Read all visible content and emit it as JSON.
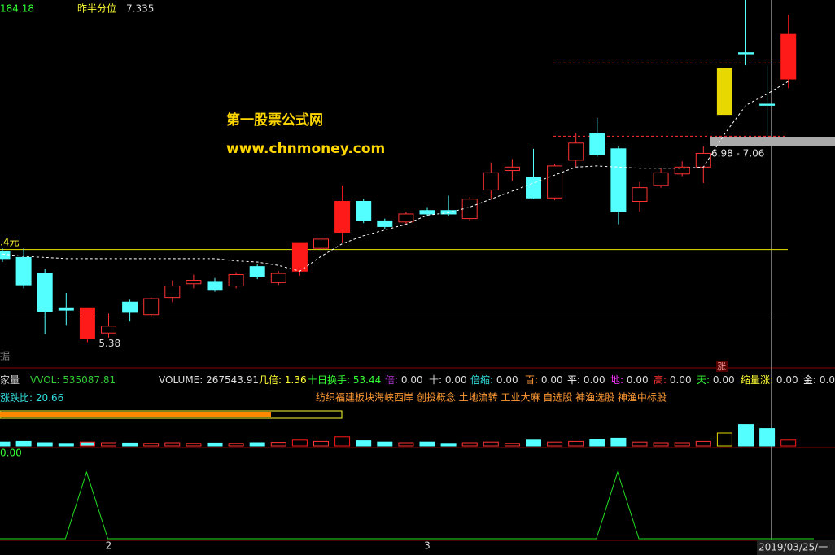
{
  "texts": {
    "top_left": "184.18",
    "ref_label": "昨半分位",
    "ref_value": "7.335",
    "site_name": "第一股票公式网",
    "site_url": "www.chnmoney.com",
    "level_note": ".4元",
    "range_note": "6.98 - 7.06",
    "side_note": "据",
    "rise_flag": "涨",
    "panel2_name": "涨跌比:",
    "panel2_value": "20.66",
    "concepts": "纺织福建板块海峡西岸 创投概念 土地流转 工业大麻 自选股 神渔选股 神渔中标股",
    "panel3_value": "0.00",
    "date": "2019/03/25/一"
  },
  "readouts": [
    {
      "label": "家量",
      "value": "",
      "color": "#cccccc"
    },
    {
      "label": "VVOL:",
      "value": "535087.81",
      "color": "#33cc33"
    },
    {
      "label": "VOLUME:",
      "value": "267543.91",
      "color": "#dddddd"
    },
    {
      "label": "几倍:",
      "value": "1.36",
      "color": "#ffff33"
    },
    {
      "label": "十日换手:",
      "value": "53.44",
      "color": "#33ff33"
    },
    {
      "label": "倍:",
      "value": "0.00",
      "color": "#aa33cc"
    },
    {
      "label": "十:",
      "value": "0.00",
      "color": "#dddddd"
    },
    {
      "label": "倍缩:",
      "value": "0.00",
      "color": "#33dddd"
    },
    {
      "label": "百:",
      "value": "0.00",
      "color": "#ff9933"
    },
    {
      "label": "平:",
      "value": "0.00",
      "color": "#ffffff"
    },
    {
      "label": "地:",
      "value": "0.00",
      "color": "#ff33ff"
    },
    {
      "label": "高:",
      "value": "0.00",
      "color": "#ff3333"
    },
    {
      "label": "天:",
      "value": "0.00",
      "color": "#33ff33"
    },
    {
      "label": "缩量涨:",
      "value": "0.00",
      "color": "#ffff33"
    },
    {
      "label": "金:",
      "value": "0.00",
      "color": "#ffffff"
    }
  ],
  "chart_data": {
    "type": "candlestick",
    "ylim": [
      5.17,
      8.37
    ],
    "categories": [
      null,
      null,
      null,
      null,
      null,
      "2",
      null,
      null,
      null,
      null,
      null,
      null,
      null,
      null,
      null,
      null,
      null,
      null,
      null,
      null,
      "3",
      null,
      null,
      null,
      null,
      null,
      null,
      null,
      null,
      null,
      null,
      null,
      null,
      null,
      null,
      null,
      null,
      null
    ],
    "candles": {
      "open": [
        6.17,
        6.12,
        5.98,
        5.68,
        5.68,
        5.46,
        5.73,
        5.62,
        5.77,
        5.89,
        5.91,
        5.87,
        6.04,
        5.9,
        6.0,
        6.2,
        6.34,
        6.61,
        6.44,
        6.43,
        6.53,
        6.53,
        6.46,
        6.71,
        6.88,
        6.82,
        6.64,
        6.97,
        7.2,
        7.07,
        6.61,
        6.75,
        6.85,
        6.91,
        7.37,
        7.91,
        7.46,
        7.68
      ],
      "high": [
        6.2,
        6.2,
        6.02,
        5.81,
        5.68,
        5.63,
        5.75,
        5.77,
        5.92,
        5.97,
        5.94,
        5.99,
        6.06,
        6.0,
        6.25,
        6.32,
        6.75,
        6.63,
        6.46,
        6.52,
        6.56,
        6.66,
        6.65,
        6.95,
        6.98,
        7.07,
        6.94,
        7.21,
        7.34,
        7.09,
        6.78,
        6.9,
        6.96,
        7.09,
        7.77,
        8.37,
        7.8,
        8.24
      ],
      "low": [
        6.08,
        5.85,
        5.45,
        5.53,
        5.38,
        5.42,
        5.56,
        5.6,
        5.73,
        5.85,
        5.82,
        5.85,
        5.93,
        5.88,
        5.96,
        6.18,
        6.25,
        6.42,
        6.37,
        6.41,
        6.48,
        6.48,
        6.44,
        6.63,
        6.79,
        6.63,
        6.62,
        6.91,
        7.0,
        6.41,
        6.52,
        6.73,
        6.83,
        6.77,
        7.37,
        7.8,
        7.16,
        7.6
      ],
      "close": [
        6.11,
        5.88,
        5.65,
        5.66,
        5.41,
        5.52,
        5.64,
        5.76,
        5.87,
        5.92,
        5.84,
        5.97,
        5.95,
        5.98,
        6.25,
        6.28,
        6.61,
        6.44,
        6.39,
        6.5,
        6.5,
        6.5,
        6.63,
        6.86,
        6.91,
        6.64,
        6.92,
        7.12,
        7.02,
        6.52,
        6.73,
        6.86,
        6.91,
        7.03,
        7.77,
        7.9,
        7.45,
        8.07
      ],
      "color": [
        "#54ffff",
        "#54ffff",
        "#54ffff",
        "#54ffff",
        "#ff1a1a",
        "#ff3232",
        "#54ffff",
        "#ff3232",
        "#ff3232",
        "#ff3232",
        "#54ffff",
        "#ff3232",
        "#54ffff",
        "#ff3232",
        "#ff1a1a",
        "#ff3232",
        "#ff1a1a",
        "#54ffff",
        "#54ffff",
        "#ff3232",
        "#54ffff",
        "#54ffff",
        "#ff3232",
        "#ff3232",
        "#ff3232",
        "#54ffff",
        "#ff3232",
        "#ff3232",
        "#54ffff",
        "#54ffff",
        "#ff3232",
        "#ff3232",
        "#ff3232",
        "#ff3232",
        "#e6d800",
        "#54ffff",
        "#54ffff",
        "#ff1a1a"
      ],
      "hollow": [
        false,
        false,
        false,
        false,
        false,
        true,
        false,
        true,
        true,
        true,
        false,
        true,
        false,
        true,
        false,
        true,
        false,
        false,
        false,
        true,
        false,
        false,
        true,
        true,
        true,
        false,
        true,
        true,
        false,
        false,
        true,
        true,
        true,
        true,
        false,
        false,
        false,
        false
      ]
    },
    "ma": {
      "color": "#ffffff",
      "values": [
        6.15,
        6.13,
        6.12,
        6.11,
        6.11,
        6.11,
        6.11,
        6.11,
        6.11,
        6.11,
        6.11,
        6.09,
        6.08,
        6.05,
        6.0,
        6.13,
        6.24,
        6.31,
        6.36,
        6.41,
        6.49,
        6.51,
        6.56,
        6.63,
        6.7,
        6.77,
        6.84,
        6.91,
        6.92,
        6.91,
        6.9,
        6.9,
        6.9,
        6.91,
        7.2,
        7.45,
        7.55,
        7.66
      ]
    },
    "levels": [
      {
        "value": 6.19,
        "color": "#e6e600",
        "dashed": false
      },
      {
        "value": 5.6,
        "color": "#dddddd",
        "dashed": false
      },
      {
        "value": 7.82,
        "color": "#ff3232",
        "dashed": true
      },
      {
        "value": 7.18,
        "color": "#ff3232",
        "dashed": true
      }
    ],
    "volume": {
      "vlim": [
        0,
        600000
      ],
      "values": [
        60000,
        70000,
        50000,
        40000,
        60000,
        50000,
        45000,
        40000,
        50000,
        40000,
        45000,
        40000,
        50000,
        55000,
        90000,
        70000,
        140000,
        80000,
        60000,
        50000,
        60000,
        40000,
        50000,
        60000,
        40000,
        90000,
        60000,
        70000,
        100000,
        120000,
        60000,
        50000,
        50000,
        70000,
        200000,
        330000,
        267543.91,
        90000
      ]
    },
    "indicator": {
      "ilim": [
        0,
        1.1
      ],
      "color": "#22dd22",
      "values": [
        0,
        0,
        0,
        0,
        1,
        0,
        0,
        0,
        0,
        0,
        0,
        0,
        0,
        0,
        0,
        0,
        0,
        0,
        0,
        0,
        0,
        0,
        0,
        0,
        0,
        0,
        0,
        0,
        0,
        1,
        0,
        0,
        0,
        0,
        0,
        0,
        0,
        0
      ]
    }
  }
}
